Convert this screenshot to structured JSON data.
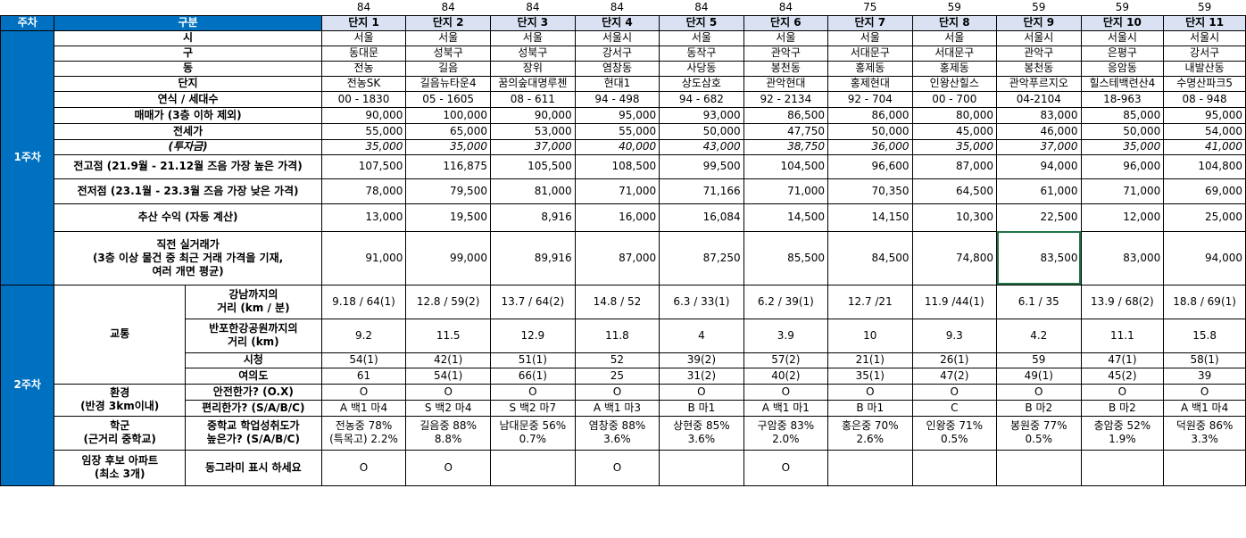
{
  "sizes": [
    "84",
    "84",
    "84",
    "84",
    "84",
    "84",
    "75",
    "59",
    "59",
    "59",
    "59"
  ],
  "header": {
    "week": "주차",
    "category": "구분",
    "complexes": [
      "단지 1",
      "단지 2",
      "단지 3",
      "단지 4",
      "단지 5",
      "단지 6",
      "단지 7",
      "단지 8",
      "단지 9",
      "단지 10",
      "단지 11"
    ]
  },
  "week1_label": "1주차",
  "week2_label": "2주차",
  "rows": {
    "city": {
      "label": "시",
      "values": [
        "서울",
        "서울",
        "서울",
        "서울시",
        "서울",
        "서울",
        "서울",
        "서울",
        "서울시",
        "서울시",
        "서울시"
      ]
    },
    "district": {
      "label": "구",
      "values": [
        "동대문",
        "성북구",
        "성북구",
        "강서구",
        "동작구",
        "관악구",
        "서대문구",
        "서대문구",
        "관악구",
        "은평구",
        "강서구"
      ]
    },
    "dong": {
      "label": "동",
      "values": [
        "전농",
        "길음",
        "장위",
        "염창동",
        "사당동",
        "봉천동",
        "홍제동",
        "홍제동",
        "봉천동",
        "응암동",
        "내발산동"
      ]
    },
    "name": {
      "label": "단지",
      "values": [
        "전농SK",
        "길음뉴타운4",
        "꿈의숲대명루첸",
        "현대1",
        "상도삼호",
        "관악현대",
        "홍제현대",
        "인왕산힐스",
        "관악푸르지오",
        "힐스테백련산4",
        "수명산파크5"
      ]
    },
    "year": {
      "label": "연식 / 세대수",
      "values": [
        "00 - 1830",
        "05 - 1605",
        "08 - 611",
        "94 - 498",
        "94 - 682",
        "92 - 2134",
        "92 - 704",
        "00 - 700",
        "04-2104",
        "18-963",
        "08 - 948"
      ]
    },
    "sale": {
      "label": "매매가 (3층 이하 제외)",
      "values": [
        "90,000",
        "100,000",
        "90,000",
        "95,000",
        "93,000",
        "86,500",
        "86,000",
        "80,000",
        "83,000",
        "85,000",
        "95,000"
      ]
    },
    "jeonse": {
      "label": "전세가",
      "values": [
        "55,000",
        "65,000",
        "53,000",
        "55,000",
        "50,000",
        "47,750",
        "50,000",
        "45,000",
        "46,000",
        "50,000",
        "54,000"
      ]
    },
    "invest": {
      "label": "(투자금)",
      "values": [
        "35,000",
        "35,000",
        "37,000",
        "40,000",
        "43,000",
        "38,750",
        "36,000",
        "35,000",
        "37,000",
        "35,000",
        "41,000"
      ]
    },
    "high": {
      "label": "전고점 (21.9월 - 21.12월 즈음 가장 높은 가격)",
      "values": [
        "107,500",
        "116,875",
        "105,500",
        "108,500",
        "99,500",
        "104,500",
        "96,600",
        "87,000",
        "94,000",
        "96,000",
        "104,800"
      ]
    },
    "low": {
      "label": "전저점 (23.1월 - 23.3월 즈음 가장 낮은 가격)",
      "values": [
        "78,000",
        "79,500",
        "81,000",
        "71,000",
        "71,166",
        "71,000",
        "70,350",
        "64,500",
        "61,000",
        "71,000",
        "69,000"
      ]
    },
    "profit": {
      "label": "추산 수익 (자동 계산)",
      "values": [
        "13,000",
        "19,500",
        "8,916",
        "16,000",
        "16,084",
        "14,500",
        "14,150",
        "10,300",
        "22,500",
        "12,000",
        "25,000"
      ]
    },
    "recent": {
      "label1": "직전 실거래가",
      "label2": "(3층 이상 물건 중 최근 거래 가격을 기재,",
      "label3": "여러 개면 평균)",
      "values": [
        "91,000",
        "99,000",
        "89,916",
        "87,000",
        "87,250",
        "85,500",
        "84,500",
        "74,800",
        "83,500",
        "83,000",
        "94,000"
      ]
    },
    "traffic_label": "교통",
    "gangnam": {
      "label1": "강남까지의",
      "label2": "거리 (km / 분)",
      "values": [
        "9.18 / 64(1)",
        "12.8 / 59(2)",
        "13.7 / 64(2)",
        "14.8 / 52",
        "6.3 / 33(1)",
        "6.2 / 39(1)",
        "12.7 /21",
        "11.9 /44(1)",
        "6.1 / 35",
        "13.9 / 68(2)",
        "18.8 / 69(1)"
      ]
    },
    "banpo": {
      "label1": "반포한강공원까지의",
      "label2": "거리 (km)",
      "values": [
        "9.2",
        "11.5",
        "12.9",
        "11.8",
        "4",
        "3.9",
        "10",
        "9.3",
        "4.2",
        "11.1",
        "15.8"
      ]
    },
    "cityhall": {
      "label": "시청",
      "values": [
        "54(1)",
        "42(1)",
        "51(1)",
        "52",
        "39(2)",
        "57(2)",
        "21(1)",
        "26(1)",
        "59",
        "47(1)",
        "58(1)"
      ]
    },
    "yeouido": {
      "label": "여의도",
      "values": [
        "61",
        "54(1)",
        "66(1)",
        "25",
        "31(2)",
        "40(2)",
        "35(1)",
        "47(2)",
        "49(1)",
        "45(2)",
        "39"
      ]
    },
    "env_label1": "환경",
    "env_label2": "(반경 3km이내)",
    "safe": {
      "label": "안전한가? (O.X)",
      "values": [
        "O",
        "O",
        "O",
        "O",
        "O",
        "O",
        "O",
        "O",
        "O",
        "O",
        "O"
      ]
    },
    "conv": {
      "label": "편리한가? (S/A/B/C)",
      "values": [
        "A 백1 마4",
        "S 백2 마4",
        "S 백2 마7",
        "A 백1 마3",
        "B 마1",
        "A 백1 마1",
        "B 마1",
        "C",
        "B 마2",
        "B 마2",
        "A 백1 마4"
      ]
    },
    "school_label1": "학군",
    "school_label2": "(근거리 중학교)",
    "school": {
      "label1": "중학교 학업성취도가",
      "label2": "높은가? (S/A/B/C)",
      "values1": [
        "전농중 78%",
        "길음중 88%",
        "남대문중 56%",
        "염창중 88%",
        "상현중 85%",
        "구암중 83%",
        "홍은중 70%",
        "인왕중 71%",
        "봉원중 77%",
        "충암중 52%",
        "덕원중 86%"
      ],
      "values2": [
        "(특목고) 2.2%",
        "8.8%",
        "0.7%",
        "3.6%",
        "3.6%",
        "2.0%",
        "2.6%",
        "0.5%",
        "0.5%",
        "1.9%",
        "3.3%"
      ]
    },
    "visit": {
      "label1": "임장 후보 아파트",
      "label2": "(최소 3개)",
      "label3": "동그라미 표시 하세요",
      "values": [
        "O",
        "O",
        "",
        "O",
        "",
        "O",
        "",
        "",
        "",
        "",
        ""
      ]
    }
  }
}
